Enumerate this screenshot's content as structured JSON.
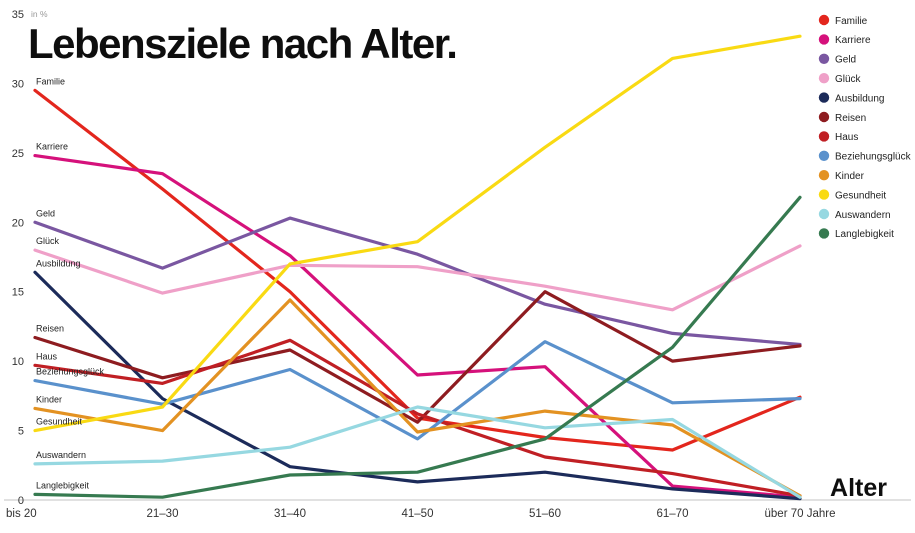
{
  "title": "Lebensziele nach Alter.",
  "chart_data": {
    "type": "line",
    "title": "Lebensziele nach Alter.",
    "xlabel": "Alter",
    "ylabel": "in %",
    "ylim": [
      0,
      35
    ],
    "yticks": [
      35,
      30,
      25,
      20,
      15,
      10,
      5,
      0
    ],
    "grid": false,
    "legend_position": "top-right",
    "categories": [
      "bis 20",
      "21–30",
      "31–40",
      "41–50",
      "51–60",
      "61–70",
      "über 70 Jahre"
    ],
    "series": [
      {
        "name": "Familie",
        "color": "#e3261d",
        "values": [
          29.5,
          22.4,
          15.0,
          5.9,
          4.5,
          3.6,
          7.4
        ]
      },
      {
        "name": "Karriere",
        "color": "#d5117b",
        "values": [
          24.8,
          23.5,
          17.6,
          9.0,
          9.6,
          1.0,
          0.2
        ]
      },
      {
        "name": "Geld",
        "color": "#7a57a1",
        "values": [
          20.0,
          16.7,
          20.3,
          17.7,
          14.1,
          12.0,
          11.2
        ]
      },
      {
        "name": "Glück",
        "color": "#efa0c8",
        "values": [
          18.0,
          14.9,
          16.9,
          16.8,
          15.4,
          13.7,
          18.3
        ]
      },
      {
        "name": "Ausbildung",
        "color": "#1c2b5a",
        "values": [
          16.4,
          7.3,
          2.4,
          1.3,
          2.0,
          0.8,
          0.1
        ]
      },
      {
        "name": "Reisen",
        "color": "#8e1c20",
        "values": [
          11.7,
          8.8,
          10.8,
          5.6,
          15.0,
          10.0,
          11.1
        ]
      },
      {
        "name": "Haus",
        "color": "#c01f24",
        "values": [
          9.7,
          8.4,
          11.5,
          6.2,
          3.1,
          1.9,
          0.3
        ]
      },
      {
        "name": "Beziehungsglück",
        "color": "#5a91cc",
        "values": [
          8.6,
          6.9,
          9.4,
          4.4,
          11.4,
          7.0,
          7.3
        ]
      },
      {
        "name": "Kinder",
        "color": "#e39222",
        "values": [
          6.6,
          5.0,
          14.4,
          4.9,
          6.4,
          5.4,
          0.3
        ]
      },
      {
        "name": "Gesundheit",
        "color": "#f9da13",
        "values": [
          5.0,
          6.7,
          17.0,
          18.6,
          25.4,
          31.8,
          33.4
        ]
      },
      {
        "name": "Auswandern",
        "color": "#96d8e1",
        "values": [
          2.6,
          2.8,
          3.8,
          6.7,
          5.2,
          5.8,
          0.2
        ]
      },
      {
        "name": "Langlebigkeit",
        "color": "#367a50",
        "values": [
          0.4,
          0.2,
          1.8,
          2.0,
          4.4,
          11.0,
          21.8
        ]
      }
    ]
  }
}
